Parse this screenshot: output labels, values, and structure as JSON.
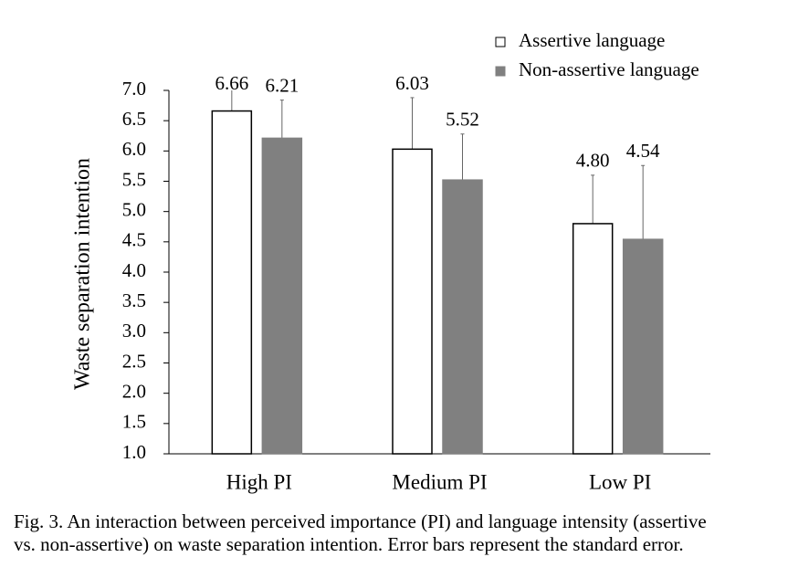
{
  "chart_data": {
    "type": "bar",
    "y_label": "Waste  separation  intention",
    "categories": [
      "High PI",
      "Medium PI",
      "Low PI"
    ],
    "series": [
      {
        "name": "Assertive language",
        "color": "#ffffff",
        "values": [
          6.66,
          6.03,
          4.8
        ],
        "value_labels": [
          "6.66",
          "6.03",
          "4.80"
        ],
        "errors": [
          0.5,
          0.85,
          0.8
        ]
      },
      {
        "name": "Non-assertive language",
        "color": "#808080",
        "values": [
          6.21,
          5.52,
          4.54
        ],
        "value_labels": [
          "6.21",
          "5.52",
          "4.54"
        ],
        "errors": [
          0.63,
          0.76,
          1.22
        ]
      }
    ],
    "ylim": [
      1.0,
      7.0
    ],
    "yticks": [
      {
        "value": 1.0,
        "label": "1.0"
      },
      {
        "value": 1.5,
        "label": "1.5"
      },
      {
        "value": 2.0,
        "label": "2.0"
      },
      {
        "value": 2.5,
        "label": "2.5"
      },
      {
        "value": 3.0,
        "label": "3.0"
      },
      {
        "value": 3.5,
        "label": "3.5"
      },
      {
        "value": 4.0,
        "label": "4.0"
      },
      {
        "value": 4.5,
        "label": "4.5"
      },
      {
        "value": 5.0,
        "label": "5.0"
      },
      {
        "value": 5.5,
        "label": "5.5"
      },
      {
        "value": 6.0,
        "label": "6.0"
      },
      {
        "value": 6.5,
        "label": "6.5"
      },
      {
        "value": 7.0,
        "label": "7.0"
      }
    ],
    "grid": false,
    "legend": "top-right",
    "caption": [
      "Fig. 3. An interaction between perceived importance (PI) and language intensity (assertive",
      "vs. non-assertive) on waste separation intention. Error bars represent the standard error."
    ]
  }
}
